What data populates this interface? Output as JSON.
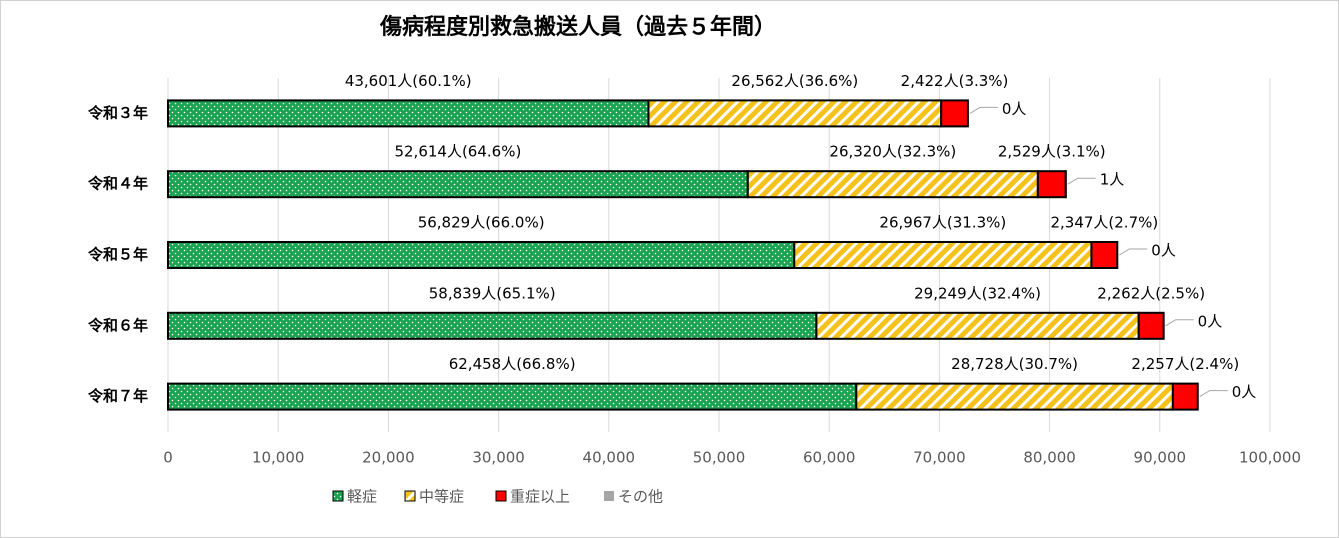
{
  "chart_data": {
    "type": "stacked-bar-horizontal",
    "title": "傷病程度別救急搬送人員（過去５年間）",
    "categories": [
      "令和３年",
      "令和４年",
      "令和５年",
      "令和６年",
      "令和７年"
    ],
    "series": [
      {
        "name": "軽症",
        "color": "#1ba352",
        "pattern": "dots",
        "values": [
          43601,
          52614,
          56829,
          58839,
          62458
        ],
        "value_labels": [
          "43,601人(60.1%)",
          "52,614人(64.6%)",
          "56,829人(66.0%)",
          "58,839人(65.1%)",
          "62,458人(66.8%)"
        ]
      },
      {
        "name": "中等症",
        "color": "#f5c21b",
        "pattern": "hatch",
        "values": [
          26562,
          26320,
          26967,
          29249,
          28728
        ],
        "value_labels": [
          "26,562人(36.6%)",
          "26,320人(32.3%)",
          "26,967人(31.3%)",
          "29,249人(32.4%)",
          "28,728人(30.7%)"
        ]
      },
      {
        "name": "重症以上",
        "color": "#ff0000",
        "pattern": "solid",
        "values": [
          2422,
          2529,
          2347,
          2262,
          2257
        ],
        "value_labels": [
          "2,422人(3.3%)",
          "2,529人(3.1%)",
          "2,347人(2.7%)",
          "2,262人(2.5%)",
          "2,257人(2.4%)"
        ]
      },
      {
        "name": "その他",
        "color": "#a6a6a6",
        "pattern": "solid",
        "values": [
          0,
          1,
          0,
          0,
          0
        ],
        "value_labels": [
          "0人",
          "1人",
          "0人",
          "0人",
          "0人"
        ]
      }
    ],
    "xlim": [
      0,
      100000
    ],
    "xticks": [
      0,
      {
        "value": 10000,
        "label": "10,000"
      },
      {
        "value": 20000,
        "label": "20,000"
      },
      {
        "value": 30000,
        "label": "30,000"
      },
      {
        "value": 40000,
        "label": "40,000"
      },
      {
        "value": 50000,
        "label": "50,000"
      },
      {
        "value": 60000,
        "label": "60,000"
      },
      {
        "value": 70000,
        "label": "70,000"
      },
      {
        "value": 80000,
        "label": "80,000"
      },
      {
        "value": 90000,
        "label": "90,000"
      },
      {
        "value": 100000,
        "label": "100,000"
      }
    ],
    "grid": true
  }
}
